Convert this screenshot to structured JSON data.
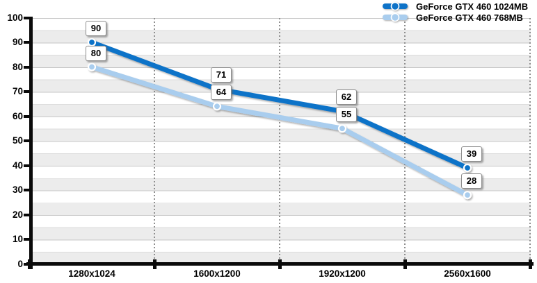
{
  "chart_data": {
    "type": "line",
    "title": "",
    "categories": [
      "1280x1024",
      "1600x1200",
      "1920x1200",
      "2560x1600"
    ],
    "series": [
      {
        "name": "GeForce GTX 460 1024MB",
        "color": "#0e73c8",
        "values": [
          90,
          71,
          62,
          39
        ]
      },
      {
        "name": "GeForce GTX 460 768MB",
        "color": "#a9cdee",
        "values": [
          80,
          64,
          55,
          28
        ]
      }
    ],
    "xlabel": "",
    "ylabel": "",
    "ylim": [
      0,
      100
    ],
    "ytick_step": 10,
    "ytick_labels": [
      "100",
      "90",
      "80",
      "70",
      "60",
      "50",
      "40",
      "30",
      "20",
      "10",
      "0"
    ],
    "grid": "horizontal gray band every 5 units, thin line every 10 units, dotted vertical category separators",
    "legend_position": "top-right",
    "data_labels_visible": true,
    "marker": "circle with white ring",
    "colors": {
      "background": "#ffffff",
      "band": "#ececec",
      "gridline_major": "#c6c6c6",
      "gridline_minor": "#dcdcdc",
      "dotted_separator": "#8f8f8f",
      "axis": "#0a0a0a",
      "label_box_border": "#8c8c8c",
      "marker_ring": "#ffffff"
    }
  }
}
